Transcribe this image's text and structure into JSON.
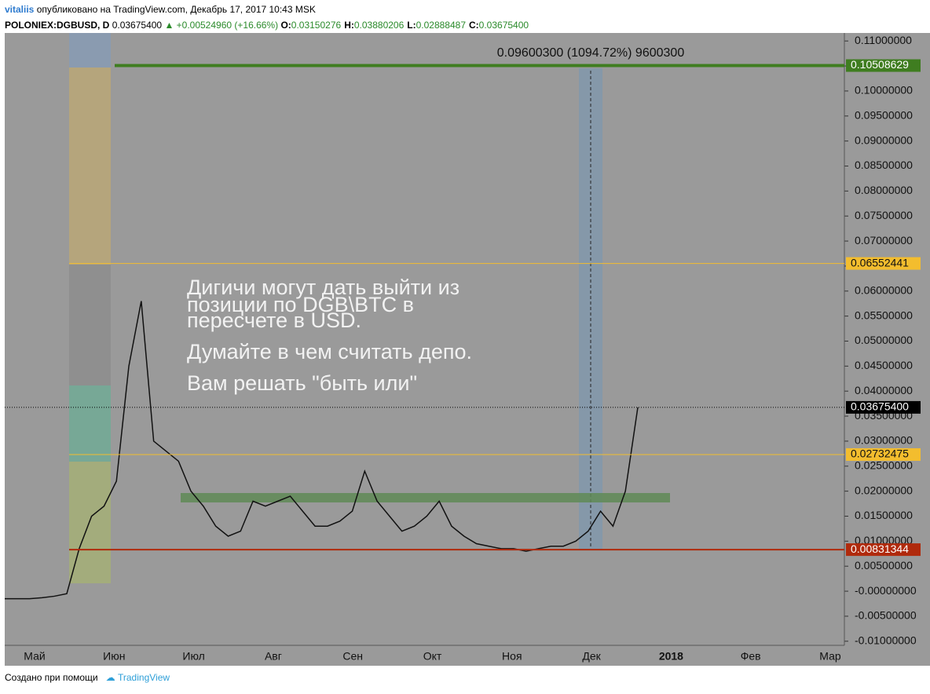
{
  "header": {
    "author": "vitaliis",
    "published": "опубликовано на TradingView.com, Декабрь 17, 2017 10:43 MSK",
    "symbol": "POLONIEX:DGBUSD, D",
    "last": "0.03675400",
    "change": "▲ +0.00524960 (+16.66%)",
    "ohlc": [
      {
        "key": "O:",
        "value": "0.03150276"
      },
      {
        "key": "H:",
        "value": "0.03880206"
      },
      {
        "key": "L:",
        "value": "0.02888487"
      },
      {
        "key": "C:",
        "value": "0.03675400"
      }
    ]
  },
  "chart_data": {
    "type": "line",
    "series": [
      {
        "name": "POLONIEX:DGBUSD, D",
        "color": "#111111",
        "values": [
          -0.0015,
          -0.0015,
          -0.0015,
          -0.0013,
          -0.001,
          -0.0005,
          0.0085,
          0.015,
          0.017,
          0.022,
          0.045,
          0.058,
          0.03,
          0.028,
          0.026,
          0.02,
          0.017,
          0.013,
          0.011,
          0.012,
          0.018,
          0.017,
          0.018,
          0.019,
          0.016,
          0.013,
          0.013,
          0.014,
          0.016,
          0.024,
          0.018,
          0.015,
          0.012,
          0.013,
          0.015,
          0.018,
          0.013,
          0.011,
          0.0095,
          0.009,
          0.0085,
          0.0085,
          0.008,
          0.0085,
          0.009,
          0.009,
          0.01,
          0.012,
          0.016,
          0.013,
          0.02,
          0.03675
        ]
      }
    ],
    "ylim": [
      -0.0149,
      0.1116
    ],
    "yticks": [
      {
        "value": 0.11,
        "label": "0.11000000"
      },
      {
        "value": 0.105,
        "label": "0.10500000"
      },
      {
        "value": 0.1,
        "label": "0.10000000"
      },
      {
        "value": 0.095,
        "label": "0.09500000"
      },
      {
        "value": 0.09,
        "label": "0.09000000"
      },
      {
        "value": 0.085,
        "label": "0.08500000"
      },
      {
        "value": 0.08,
        "label": "0.08000000"
      },
      {
        "value": 0.075,
        "label": "0.07500000"
      },
      {
        "value": 0.07,
        "label": "0.07000000"
      },
      {
        "value": 0.065,
        "label": "0.06500000"
      },
      {
        "value": 0.06,
        "label": "0.06000000"
      },
      {
        "value": 0.055,
        "label": "0.05500000"
      },
      {
        "value": 0.05,
        "label": "0.05000000"
      },
      {
        "value": 0.045,
        "label": "0.04500000"
      },
      {
        "value": 0.04,
        "label": "0.04000000"
      },
      {
        "value": 0.035,
        "label": "0.03500000"
      },
      {
        "value": 0.03,
        "label": "0.03000000"
      },
      {
        "value": 0.025,
        "label": "0.02500000"
      },
      {
        "value": 0.02,
        "label": "0.02000000"
      },
      {
        "value": 0.015,
        "label": "0.01500000"
      },
      {
        "value": 0.01,
        "label": "0.01000000"
      },
      {
        "value": 0.005,
        "label": "0.00500000"
      },
      {
        "value": 0,
        "label": "-0.00000000"
      },
      {
        "value": -0.005,
        "label": "-0.00500000"
      },
      {
        "value": -0.01,
        "label": "-0.01000000"
      }
    ],
    "x_axis_labels": [
      "Май",
      "Июн",
      "Июл",
      "Авг",
      "Сен",
      "Окт",
      "Ноя",
      "Дек",
      "2018",
      "Фев",
      "Мар"
    ],
    "levels": [
      {
        "value": 0.10508629,
        "label": "0.10508629",
        "color": "#3f7d20"
      },
      {
        "value": 0.06552441,
        "label": "0.06552441",
        "color": "#f3bd2e"
      },
      {
        "value": 0.036754,
        "label": "0.03675400",
        "color": "#000000"
      },
      {
        "value": 0.02732475,
        "label": "0.02732475",
        "color": "#f3bd2e"
      },
      {
        "value": 0.00831344,
        "label": "0.00831344",
        "color": "#b02a0c"
      }
    ],
    "measure": "0.09600300 (1094.72%) 9600300",
    "note": [
      "Дигичи могут дать выйти из",
      "позиции по DGB\\BTC в",
      "пересчете в USD.",
      "Думайте в чем считать депо.",
      "Вам решать \"быть или\""
    ]
  },
  "footer": {
    "made_with": "Создано при помощи",
    "brand": "TradingView"
  }
}
